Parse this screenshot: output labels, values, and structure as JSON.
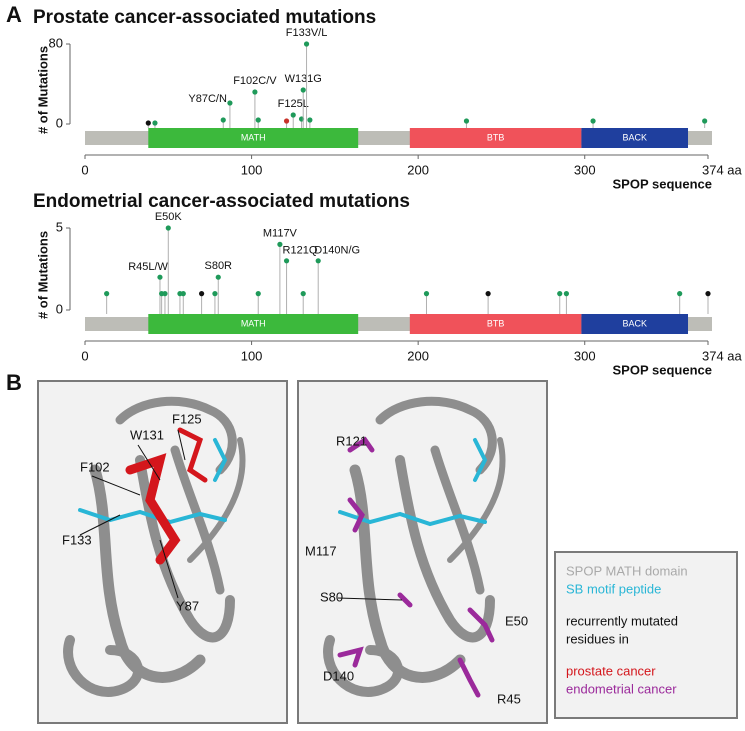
{
  "panel_labels": [
    "A",
    "B"
  ],
  "chart_data": [
    {
      "type": "lollipop",
      "title": "Prostate cancer-associated mutations",
      "ylabel": "# of Mutations",
      "xlabel": "SPOP sequence",
      "xlim": [
        0,
        374
      ],
      "xticks": [
        0,
        100,
        200,
        300,
        {
          "value": 374,
          "label": "374 aa"
        }
      ],
      "ylim": [
        0,
        80
      ],
      "yticks": [
        0,
        80
      ],
      "domains": [
        {
          "name": "MATH",
          "start": 38,
          "end": 164,
          "color": "#3cb93c"
        },
        {
          "name": "BTB",
          "start": 195,
          "end": 298,
          "color": "#f0525a"
        },
        {
          "name": "BACK",
          "start": 298,
          "end": 362,
          "color": "#1f3f9e"
        }
      ],
      "x": [
        38,
        42,
        83,
        87,
        102,
        104,
        121,
        125,
        130,
        131,
        133,
        135,
        229,
        305,
        372
      ],
      "values": [
        1,
        1,
        4,
        21,
        32,
        4,
        3,
        9,
        5,
        34,
        80,
        4,
        3,
        3,
        3
      ],
      "colors": [
        "#111111",
        "#1f9a5a",
        "#1f9a5a",
        "#1f9a5a",
        "#1f9a5a",
        "#1f9a5a",
        "#c8332a",
        "#1f9a5a",
        "#1f9a5a",
        "#1f9a5a",
        "#1f9a5a",
        "#1f9a5a",
        "#1f9a5a",
        "#1f9a5a",
        "#1f9a5a"
      ],
      "labels": [
        null,
        null,
        null,
        "Y87C/N",
        "F102C/V",
        null,
        null,
        "F125L",
        null,
        "W131G",
        "F133V/L",
        null,
        null,
        null,
        null
      ]
    },
    {
      "type": "lollipop",
      "title": "Endometrial cancer-associated mutations",
      "ylabel": "# of Mutations",
      "xlabel": "SPOP sequence",
      "xlim": [
        0,
        374
      ],
      "xticks": [
        0,
        100,
        200,
        300,
        {
          "value": 374,
          "label": "374 aa"
        }
      ],
      "ylim": [
        0,
        5
      ],
      "yticks": [
        0,
        5
      ],
      "domains": [
        {
          "name": "MATH",
          "start": 38,
          "end": 164,
          "color": "#3cb93c"
        },
        {
          "name": "BTB",
          "start": 195,
          "end": 298,
          "color": "#f0525a"
        },
        {
          "name": "BACK",
          "start": 298,
          "end": 362,
          "color": "#1f3f9e"
        }
      ],
      "x": [
        13,
        45,
        46,
        48,
        50,
        57,
        59,
        70,
        78,
        80,
        104,
        117,
        121,
        131,
        140,
        205,
        242,
        285,
        289,
        357,
        374
      ],
      "values": [
        1,
        2,
        1,
        1,
        5,
        1,
        1,
        1,
        1,
        2,
        1,
        4,
        3,
        1,
        3,
        1,
        1,
        1,
        1,
        1,
        1
      ],
      "colors": [
        "#1f9a5a",
        "#1f9a5a",
        "#1f9a5a",
        "#1f9a5a",
        "#1f9a5a",
        "#1f9a5a",
        "#1f9a5a",
        "#111111",
        "#1f9a5a",
        "#1f9a5a",
        "#1f9a5a",
        "#1f9a5a",
        "#1f9a5a",
        "#1f9a5a",
        "#1f9a5a",
        "#1f9a5a",
        "#111111",
        "#1f9a5a",
        "#1f9a5a",
        "#1f9a5a",
        "#111111"
      ],
      "labels": [
        null,
        "R45L/W",
        null,
        null,
        "E50K",
        null,
        null,
        null,
        null,
        "S80R",
        null,
        "M117V",
        "R121Q",
        null,
        "D140N/G",
        null,
        null,
        null,
        null,
        null,
        null
      ]
    }
  ],
  "structures": [
    {
      "labels": [
        "W131",
        "F125",
        "F102",
        "F133",
        "Y87"
      ]
    },
    {
      "labels": [
        "R121",
        "M117",
        "S80",
        "E50",
        "D140",
        "R45"
      ]
    }
  ],
  "legend": {
    "lines": [
      "SPOP MATH domain",
      "SB motif peptide",
      "recurrently mutated",
      "residues in",
      "prostate cancer",
      "endometrial cancer"
    ]
  }
}
